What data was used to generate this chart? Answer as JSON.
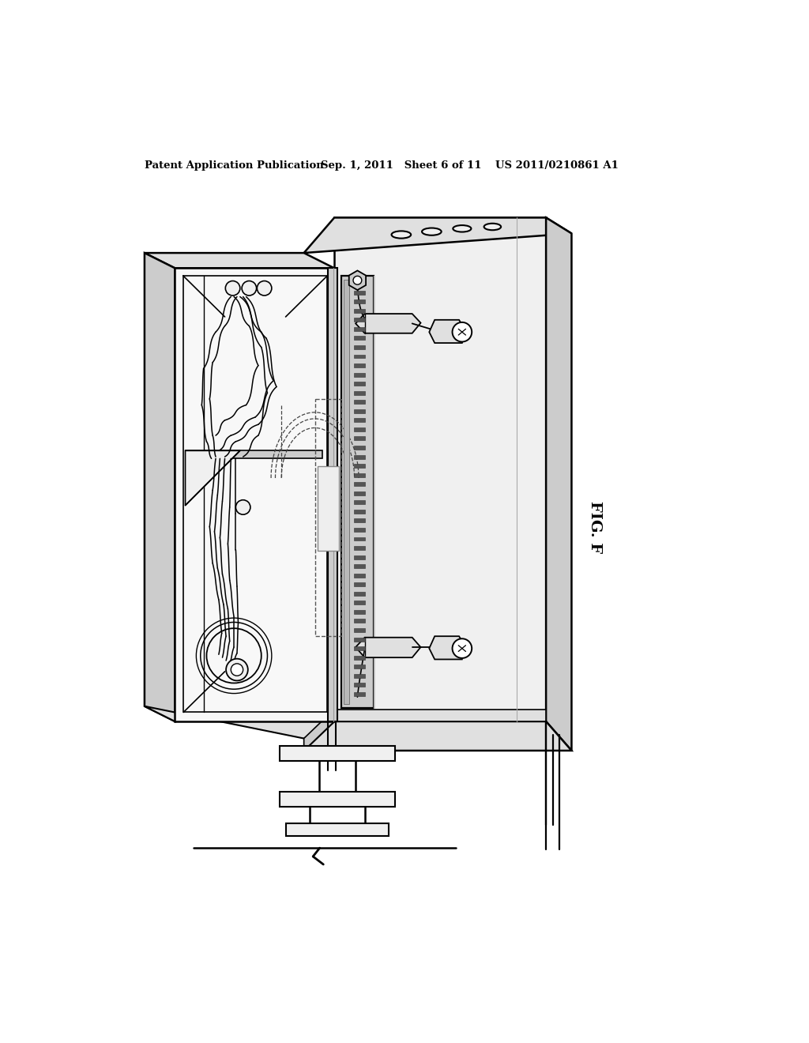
{
  "bg_color": "#ffffff",
  "header_left": "Patent Application Publication",
  "header_mid": "Sep. 1, 2011   Sheet 6 of 11",
  "header_right": "US 2011/0210861 A1",
  "fig_label": "FIG. F",
  "line_color": "#000000",
  "face_white": "#ffffff",
  "face_vlight": "#f8f8f8",
  "face_light": "#f0f0f0",
  "face_mid": "#e0e0e0",
  "face_dark": "#cccccc",
  "face_darker": "#b0b0b0"
}
